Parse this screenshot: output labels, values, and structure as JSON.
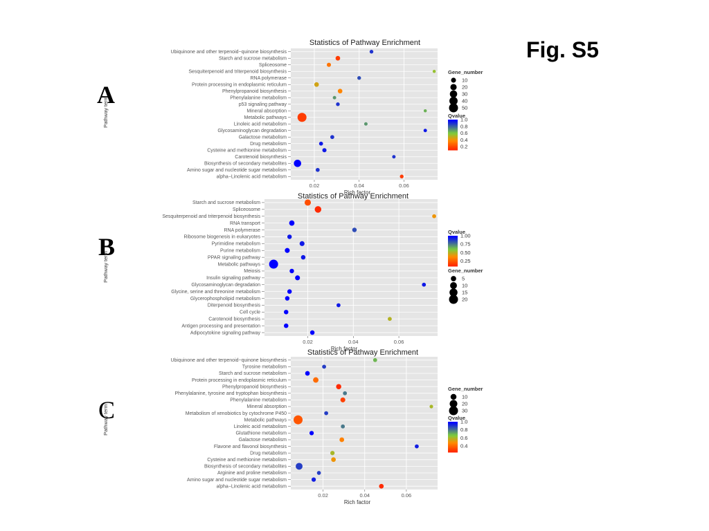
{
  "figure_label": "Fig. S5",
  "panel_letters": [
    "A",
    "B",
    "C"
  ],
  "colors": {
    "low_q": "#ff2a00",
    "mid_low_q": "#ff8c00",
    "mid_q": "#7ccd3c",
    "high_q": "#0000ff"
  },
  "chart_data": [
    {
      "type": "scatter",
      "title": "Statistics of Pathway Enrichment",
      "xlabel": "Rich factor",
      "ylabel": "Pathway term",
      "xlim": [
        0.0095,
        0.075
      ],
      "xticks": [
        0.02,
        0.04,
        0.06
      ],
      "xtick_labels": [
        "0.02",
        "0.04",
        "0.06"
      ],
      "qvalue_range": [
        0.1,
        1.0
      ],
      "grid": true,
      "terms": [
        "Ubiquinone and other terpenoid−quinone biosynthesis",
        "Starch and sucrose metabolism",
        "Spliceosome",
        "Sesquiterpenoid and triterpenoid biosynthesis",
        "RNA polymerase",
        "Protein processing in endoplasmic reticulum",
        "Phenylpropanoid biosynthesis",
        "Phenylalanine metabolism",
        "p53 signaling pathway",
        "Mineral absorption",
        "Metabolic pathways",
        "Linoleic acid metabolism",
        "Glycosaminoglycan degradation",
        "Galactose metabolism",
        "Drug metabolism",
        "Cysteine and methionine metabolism",
        "Carotenoid biosynthesis",
        "Biosynthesis of secondary metabolites",
        "Amino sugar and nucleotide sugar metabolism",
        "alpha−Linolenic acid metabolism"
      ],
      "points": [
        {
          "term": "Ubiquinone and other terpenoid−quinone biosynthesis",
          "x": 0.0455,
          "genes": 4,
          "q": 0.9
        },
        {
          "term": "Starch and sucrose metabolism",
          "x": 0.0305,
          "genes": 8,
          "q": 0.15
        },
        {
          "term": "Spliceosome",
          "x": 0.0265,
          "genes": 6,
          "q": 0.3
        },
        {
          "term": "Sesquiterpenoid and triterpenoid biosynthesis",
          "x": 0.0735,
          "genes": 2,
          "q": 0.55
        },
        {
          "term": "RNA polymerase",
          "x": 0.04,
          "genes": 4,
          "q": 0.85
        },
        {
          "term": "Protein processing in endoplasmic reticulum",
          "x": 0.021,
          "genes": 8,
          "q": 0.45
        },
        {
          "term": "Phenylpropanoid biosynthesis",
          "x": 0.0315,
          "genes": 8,
          "q": 0.35
        },
        {
          "term": "Phenylalanine metabolism",
          "x": 0.029,
          "genes": 3,
          "q": 0.7
        },
        {
          "term": "p53 signaling pathway",
          "x": 0.0305,
          "genes": 4,
          "q": 0.9
        },
        {
          "term": "Mineral absorption",
          "x": 0.0695,
          "genes": 2,
          "q": 0.65
        },
        {
          "term": "Metabolic pathways",
          "x": 0.0145,
          "genes": 50,
          "q": 0.15
        },
        {
          "term": "Linoleic acid metabolism",
          "x": 0.043,
          "genes": 3,
          "q": 0.7
        },
        {
          "term": "Glycosaminoglycan degradation",
          "x": 0.0695,
          "genes": 3,
          "q": 0.95
        },
        {
          "term": "Galactose metabolism",
          "x": 0.028,
          "genes": 5,
          "q": 0.9
        },
        {
          "term": "Drug metabolism",
          "x": 0.023,
          "genes": 5,
          "q": 0.95
        },
        {
          "term": "Cysteine and methionine metabolism",
          "x": 0.0245,
          "genes": 6,
          "q": 0.95
        },
        {
          "term": "Carotenoid biosynthesis",
          "x": 0.0555,
          "genes": 3,
          "q": 0.9
        },
        {
          "term": "Biosynthesis of secondary metabolites",
          "x": 0.0125,
          "genes": 30,
          "q": 1.0
        },
        {
          "term": "Amino sugar and nucleotide sugar metabolism",
          "x": 0.0215,
          "genes": 5,
          "q": 0.9
        },
        {
          "term": "alpha−Linolenic acid metabolism",
          "x": 0.059,
          "genes": 4,
          "q": 0.15
        }
      ],
      "legends": [
        {
          "kind": "size",
          "title": "Gene_number",
          "labels": [
            "10",
            "20",
            "30",
            "40",
            "50"
          ],
          "values": [
            10,
            20,
            30,
            40,
            50
          ]
        },
        {
          "kind": "color",
          "title": "Qvalue",
          "labels": [
            "1.0",
            "0.8",
            "0.6",
            "0.4",
            "0.2"
          ],
          "values": [
            1.0,
            0.8,
            0.6,
            0.4,
            0.2
          ]
        }
      ]
    },
    {
      "type": "scatter",
      "title": "Statistics of Pathway Enrichment",
      "xlabel": "Rich factor",
      "ylabel": "Pathway term",
      "xlim": [
        0.001,
        0.077
      ],
      "xticks": [
        0.02,
        0.04,
        0.06
      ],
      "xtick_labels": [
        "0.02",
        "0.04",
        "0.06"
      ],
      "qvalue_range": [
        0.1,
        1.0
      ],
      "grid": true,
      "terms": [
        "Starch and sucrose metabolism",
        "Spliceosome",
        "Sesquiterpenoid and triterpenoid biosynthesis",
        "RNA transport",
        "RNA polymerase",
        "Ribosome biogenesis in eukaryotes",
        "Pyrimidine metabolism",
        "Purine metabolism",
        "PPAR signaling pathway",
        "Metabolic pathways",
        "Meiosis",
        "Insulin signaling pathway",
        "Glycosaminoglycan degradation",
        "Glycine, serine and threonine metabolism",
        "Glycerophospholipid metabolism",
        "Diterpenoid biosynthesis",
        "Cell cycle",
        "Carotenoid biosynthesis",
        "Antigen processing and presentation",
        "Adipocytokine signaling pathway"
      ],
      "points": [
        {
          "term": "Starch and sucrose metabolism",
          "x": 0.02,
          "genes": 8,
          "q": 0.2
        },
        {
          "term": "Spliceosome",
          "x": 0.0245,
          "genes": 9,
          "q": 0.1
        },
        {
          "term": "Sesquiterpenoid and triterpenoid biosynthesis",
          "x": 0.0755,
          "genes": 2,
          "q": 0.4
        },
        {
          "term": "RNA transport",
          "x": 0.013,
          "genes": 5,
          "q": 1.0
        },
        {
          "term": "RNA polymerase",
          "x": 0.0405,
          "genes": 3,
          "q": 0.85
        },
        {
          "term": "Ribosome biogenesis in eukaryotes",
          "x": 0.012,
          "genes": 3,
          "q": 0.95
        },
        {
          "term": "Pyrimidine metabolism",
          "x": 0.0175,
          "genes": 4,
          "q": 0.95
        },
        {
          "term": "Purine metabolism",
          "x": 0.011,
          "genes": 4,
          "q": 1.0
        },
        {
          "term": "PPAR signaling pathway",
          "x": 0.018,
          "genes": 3,
          "q": 0.95
        },
        {
          "term": "Metabolic pathways",
          "x": 0.005,
          "genes": 20,
          "q": 1.0
        },
        {
          "term": "Meiosis",
          "x": 0.013,
          "genes": 3,
          "q": 1.0
        },
        {
          "term": "Insulin signaling pathway",
          "x": 0.0155,
          "genes": 4,
          "q": 1.0
        },
        {
          "term": "Glycosaminoglycan degradation",
          "x": 0.071,
          "genes": 2,
          "q": 0.95
        },
        {
          "term": "Glycine, serine and threonine metabolism",
          "x": 0.012,
          "genes": 3,
          "q": 1.0
        },
        {
          "term": "Glycerophospholipid metabolism",
          "x": 0.011,
          "genes": 3,
          "q": 1.0
        },
        {
          "term": "Diterpenoid biosynthesis",
          "x": 0.0335,
          "genes": 2,
          "q": 0.95
        },
        {
          "term": "Cell cycle",
          "x": 0.0105,
          "genes": 3,
          "q": 1.0
        },
        {
          "term": "Carotenoid biosynthesis",
          "x": 0.056,
          "genes": 2,
          "q": 0.5
        },
        {
          "term": "Antigen processing and presentation",
          "x": 0.0105,
          "genes": 3,
          "q": 1.0
        },
        {
          "term": "Adipocytokine signaling pathway",
          "x": 0.022,
          "genes": 3,
          "q": 1.0
        }
      ],
      "legends": [
        {
          "kind": "color",
          "title": "Qvalue",
          "labels": [
            "1.00",
            "0.75",
            "0.50",
            "0.25"
          ],
          "values": [
            1.0,
            0.75,
            0.5,
            0.25
          ]
        },
        {
          "kind": "size",
          "title": "Gene_number",
          "labels": [
            "5",
            "10",
            "15",
            "20"
          ],
          "values": [
            5,
            10,
            15,
            20
          ]
        }
      ]
    },
    {
      "type": "scatter",
      "title": "Statistics of Pathway Enrichment",
      "xlabel": "Rich factor",
      "ylabel": "Pathway term",
      "xlim": [
        0.0045,
        0.075
      ],
      "xticks": [
        0.02,
        0.04,
        0.06
      ],
      "xtick_labels": [
        "0.02",
        "0.04",
        "0.06"
      ],
      "qvalue_range": [
        0.25,
        1.0
      ],
      "grid": true,
      "terms": [
        "Ubiquinone and other terpenoid−quinone biosynthesis",
        "Tyrosine metabolism",
        "Starch and sucrose metabolism",
        "Protein processing in endoplasmic reticulum",
        "Phenylpropanoid biosynthesis",
        "Phenylalanine, tyrosine and tryptophan biosynthesis",
        "Phenylalanine metabolism",
        "Mineral absorption",
        "Metabolism of xenobiotics by cytochrome P450",
        "Metabolic pathways",
        "Linoleic acid metabolism",
        "Glutathione metabolism",
        "Galactose metabolism",
        "Flavone and flavonol biosynthesis",
        "Drug metabolism",
        "Cysteine and methionine metabolism",
        "Biosynthesis of secondary metabolites",
        "Arginine and proline metabolism",
        "Amino sugar and nucleotide sugar metabolism",
        "alpha−Linolenic acid metabolism"
      ],
      "points": [
        {
          "term": "Ubiquinone and other terpenoid−quinone biosynthesis",
          "x": 0.045,
          "genes": 3,
          "q": 0.7
        },
        {
          "term": "Tyrosine metabolism",
          "x": 0.0205,
          "genes": 3,
          "q": 0.9
        },
        {
          "term": "Starch and sucrose metabolism",
          "x": 0.0125,
          "genes": 5,
          "q": 1.0
        },
        {
          "term": "Protein processing in endoplasmic reticulum",
          "x": 0.0165,
          "genes": 8,
          "q": 0.4
        },
        {
          "term": "Phenylpropanoid biosynthesis",
          "x": 0.0275,
          "genes": 7,
          "q": 0.25
        },
        {
          "term": "Phenylalanine, tyrosine and tryptophan biosynthesis",
          "x": 0.0305,
          "genes": 3,
          "q": 0.8
        },
        {
          "term": "Phenylalanine metabolism",
          "x": 0.0295,
          "genes": 6,
          "q": 0.3
        },
        {
          "term": "Mineral absorption",
          "x": 0.072,
          "genes": 2,
          "q": 0.6
        },
        {
          "term": "Metabolism of xenobiotics by cytochrome P450",
          "x": 0.0215,
          "genes": 3,
          "q": 0.9
        },
        {
          "term": "Metabolic pathways",
          "x": 0.008,
          "genes": 30,
          "q": 0.35
        },
        {
          "term": "Linoleic acid metabolism",
          "x": 0.0295,
          "genes": 3,
          "q": 0.8
        },
        {
          "term": "Glutathione metabolism",
          "x": 0.0145,
          "genes": 4,
          "q": 1.0
        },
        {
          "term": "Galactose metabolism",
          "x": 0.029,
          "genes": 5,
          "q": 0.45
        },
        {
          "term": "Flavone and flavonol biosynthesis",
          "x": 0.065,
          "genes": 3,
          "q": 0.95
        },
        {
          "term": "Drug metabolism",
          "x": 0.0245,
          "genes": 4,
          "q": 0.6
        },
        {
          "term": "Cysteine and methionine metabolism",
          "x": 0.025,
          "genes": 5,
          "q": 0.5
        },
        {
          "term": "Biosynthesis of secondary metabolites",
          "x": 0.0085,
          "genes": 15,
          "q": 0.9
        },
        {
          "term": "Arginine and proline metabolism",
          "x": 0.018,
          "genes": 3,
          "q": 0.9
        },
        {
          "term": "Amino sugar and nucleotide sugar metabolism",
          "x": 0.0155,
          "genes": 4,
          "q": 0.95
        },
        {
          "term": "alpha−Linolenic acid metabolism",
          "x": 0.048,
          "genes": 5,
          "q": 0.25
        }
      ],
      "legends": [
        {
          "kind": "size",
          "title": "Gene_number",
          "labels": [
            "10",
            "20",
            "30"
          ],
          "values": [
            10,
            20,
            30
          ]
        },
        {
          "kind": "color",
          "title": "Qvalue",
          "labels": [
            "1.0",
            "0.8",
            "0.6",
            "0.4"
          ],
          "values": [
            1.0,
            0.8,
            0.6,
            0.4
          ]
        }
      ]
    }
  ]
}
